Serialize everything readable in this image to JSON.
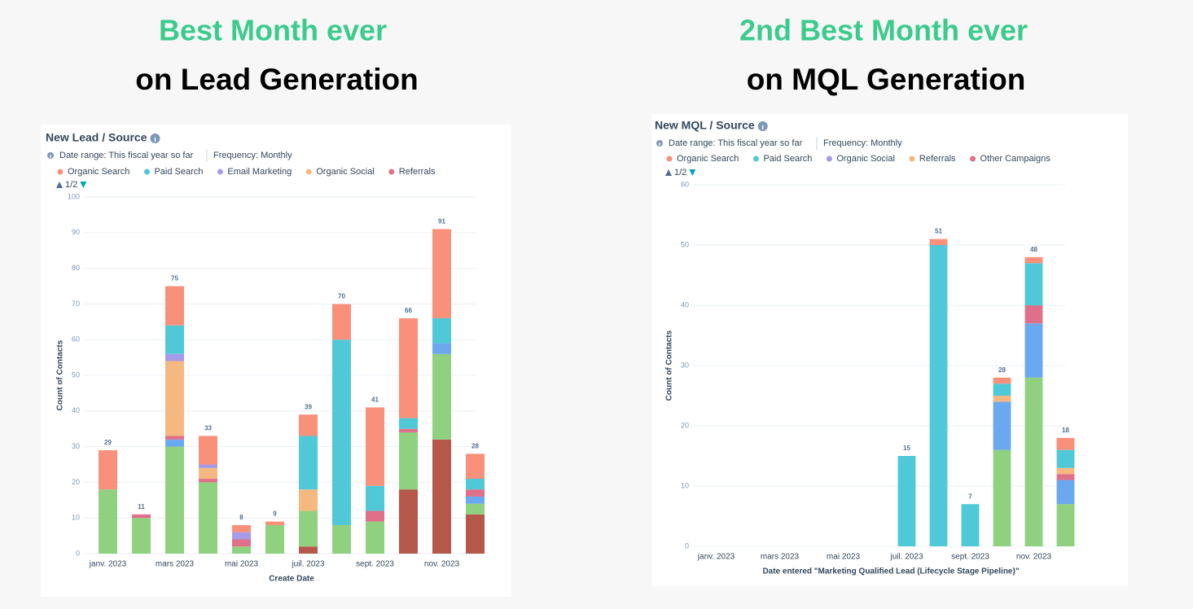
{
  "headings": [
    {
      "line1": "Best Month ever",
      "line2": "on Lead Generation"
    },
    {
      "line1": "2nd Best Month ever",
      "line2": "on MQL Generation"
    }
  ],
  "chart_data": [
    {
      "type": "bar",
      "stacked": true,
      "title": "New Lead / Source",
      "subtitle": "Date range: This fiscal year so far",
      "frequency": "Frequency: Monthly",
      "legend_page": "1/2",
      "x_label": "Create Date",
      "y_label": "Count of Contacts",
      "categories": [
        "janv. 2023",
        null,
        "mars 2023",
        null,
        "mai 2023",
        null,
        "juil. 2023",
        null,
        "sept. 2023",
        null,
        "nov. 2023",
        null
      ],
      "ylim": [
        0,
        100
      ],
      "yticks": [
        0,
        10,
        20,
        30,
        40,
        50,
        60,
        70,
        80,
        90,
        100
      ],
      "grid": true,
      "series": [
        {
          "name": "Organic Search",
          "color": "#f8907a",
          "values": [
            11,
            0,
            11,
            8,
            2,
            1,
            6,
            10,
            22,
            28,
            25,
            7
          ]
        },
        {
          "name": "Paid Search",
          "color": "#4fc9d8",
          "values": [
            0,
            0,
            8,
            0,
            0,
            0,
            15,
            52,
            7,
            3,
            7,
            3
          ]
        },
        {
          "name": "Email Marketing",
          "color": "#a59be6",
          "values": [
            0,
            0,
            2,
            1,
            2,
            0,
            0,
            0,
            0,
            0,
            0,
            0
          ]
        },
        {
          "name": "Organic Social",
          "color": "#f5b880",
          "values": [
            0,
            0,
            21,
            3,
            0,
            0,
            6,
            0,
            0,
            0,
            0,
            0
          ]
        },
        {
          "name": "Referrals",
          "color": "#e0708a",
          "values": [
            0,
            1,
            1,
            1,
            2,
            0,
            0,
            0,
            3,
            1,
            0,
            2
          ]
        },
        {
          "color": "#6aa8f0",
          "values": [
            0,
            0,
            2,
            0,
            0,
            0,
            0,
            0,
            0,
            0,
            3,
            2
          ]
        },
        {
          "color": "#8fd17f",
          "values": [
            18,
            10,
            30,
            20,
            2,
            8,
            10,
            8,
            9,
            16,
            24,
            3
          ]
        },
        {
          "color": "#b5584a",
          "values": [
            0,
            0,
            0,
            0,
            0,
            0,
            2,
            0,
            0,
            18,
            32,
            11
          ]
        }
      ],
      "totals": [
        29,
        11,
        75,
        33,
        8,
        9,
        39,
        70,
        41,
        66,
        91,
        28
      ]
    },
    {
      "type": "bar",
      "stacked": true,
      "title": "New MQL / Source",
      "subtitle": "Date range: This fiscal year so far",
      "frequency": "Frequency: Monthly",
      "legend_page": "1/2",
      "x_label": "Date entered \"Marketing Qualified Lead (Lifecycle Stage Pipeline)\"",
      "y_label": "Count of Contacts",
      "categories": [
        "janv. 2023",
        null,
        "mars 2023",
        null,
        "mai 2023",
        null,
        "juil. 2023",
        null,
        "sept. 2023",
        null,
        "nov. 2023",
        null
      ],
      "ylim": [
        0,
        60
      ],
      "yticks": [
        0,
        10,
        20,
        30,
        40,
        50,
        60
      ],
      "grid": true,
      "series": [
        {
          "name": "Organic Search",
          "color": "#f8907a",
          "values": [
            0,
            0,
            0,
            0,
            0,
            0,
            0,
            1,
            0,
            1,
            1,
            2
          ]
        },
        {
          "name": "Paid Search",
          "color": "#4fc9d8",
          "values": [
            0,
            0,
            0,
            0,
            0,
            0,
            15,
            50,
            7,
            2,
            7,
            3
          ]
        },
        {
          "name": "Organic Social",
          "color": "#a59be6",
          "values": [
            0,
            0,
            0,
            0,
            0,
            0,
            0,
            0,
            0,
            0,
            0,
            0
          ]
        },
        {
          "name": "Referrals",
          "color": "#f5b880",
          "values": [
            0,
            0,
            0,
            0,
            0,
            0,
            0,
            0,
            0,
            1,
            0,
            1
          ]
        },
        {
          "name": "Other Campaigns",
          "color": "#e0708a",
          "values": [
            0,
            0,
            0,
            0,
            0,
            0,
            0,
            0,
            0,
            0,
            3,
            1
          ]
        },
        {
          "color": "#6aa8f0",
          "values": [
            0,
            0,
            0,
            0,
            0,
            0,
            0,
            0,
            0,
            8,
            9,
            4
          ]
        },
        {
          "color": "#8fd17f",
          "values": [
            0,
            0,
            0,
            0,
            0,
            0,
            0,
            0,
            0,
            16,
            28,
            7
          ]
        }
      ],
      "totals": [
        null,
        null,
        null,
        null,
        null,
        null,
        15,
        51,
        7,
        28,
        48,
        18
      ]
    }
  ]
}
